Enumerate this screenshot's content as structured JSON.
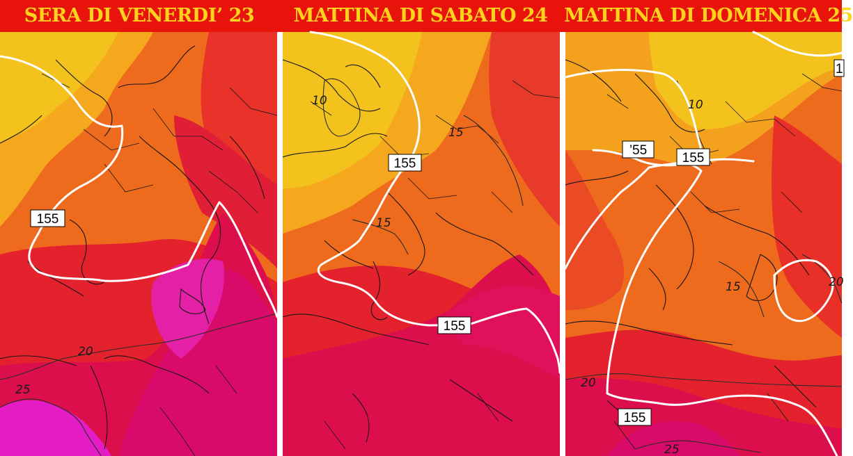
{
  "panels": [
    {
      "title": "SERA DI VENERDI’ 23",
      "labels": {
        "gph": "155",
        "iso_a": "20",
        "iso_b": "25"
      }
    },
    {
      "title": "MATTINA DI SABATO 24",
      "labels": {
        "gph_a": "155",
        "gph_b": "155",
        "iso_a": "10",
        "iso_b": "15",
        "iso_c": "15"
      }
    },
    {
      "title": "MATTINA DI DOMENICA 25",
      "labels": {
        "gph_a": "’55",
        "gph_b": "155",
        "gph_c": "155",
        "iso_a": "10",
        "iso_b": "15",
        "iso_c": "20",
        "iso_d": "25",
        "iso_e": "20",
        "edge": "1"
      }
    }
  ],
  "colors": {
    "header_bg": "#e8140c",
    "title_text": "#ffd21c",
    "contour_white": "#ffffff",
    "cold": "#f2c81a",
    "mid": "#f07a1e",
    "warm": "#e6262a",
    "hot": "#d80a6a",
    "hottest": "#e31cc6"
  }
}
